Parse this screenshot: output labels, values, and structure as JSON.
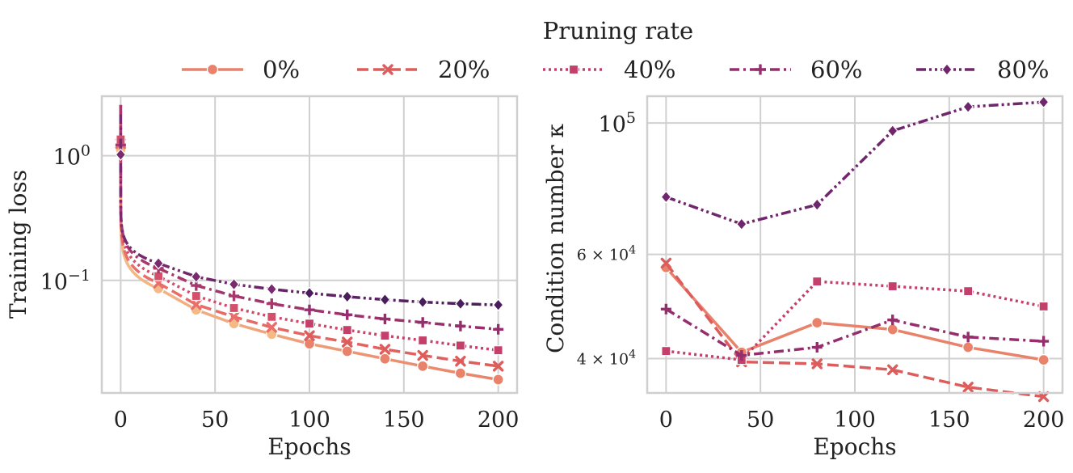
{
  "legend": {
    "title": "Pruning rate",
    "entries": [
      {
        "label": "0%",
        "color": "#e8826a",
        "dash": "solid",
        "marker": "circle"
      },
      {
        "label": "20%",
        "color": "#dd5c5c",
        "dash": "dashed",
        "marker": "x"
      },
      {
        "label": "40%",
        "color": "#c43f69",
        "dash": "dotted",
        "marker": "square"
      },
      {
        "label": "60%",
        "color": "#962e6e",
        "dash": "dashdot",
        "marker": "plus"
      },
      {
        "label": "80%",
        "color": "#70266d",
        "dash": "dashdotdot",
        "marker": "diamond"
      }
    ]
  },
  "chart_data": [
    {
      "type": "line",
      "title": "",
      "xlabel": "Epochs",
      "ylabel": "Training loss",
      "yscale": "log",
      "xlim": [
        -10,
        210
      ],
      "ylim": [
        0.0125,
        3.0
      ],
      "xticks": [
        0,
        50,
        100,
        150,
        200
      ],
      "xtick_labels": [
        "0",
        "50",
        "100",
        "150",
        "200"
      ],
      "yticks": [
        1.0,
        0.1
      ],
      "ytick_labels": [
        "10^0",
        "10^-1"
      ],
      "grid": true,
      "series": [
        {
          "name": "0%",
          "color_start": "#f3b986",
          "color_end": "#e8826a",
          "x": [
            0,
            20,
            40,
            60,
            80,
            100,
            120,
            140,
            160,
            180,
            200
          ],
          "y": [
            1.12,
            0.086,
            0.058,
            0.045,
            0.037,
            0.031,
            0.027,
            0.0235,
            0.0205,
            0.018,
            0.016
          ]
        },
        {
          "name": "20%",
          "color_start": "#e9706a",
          "color_end": "#dd5c5c",
          "x": [
            0,
            20,
            40,
            60,
            80,
            100,
            120,
            140,
            160,
            180,
            200
          ],
          "y": [
            1.25,
            0.095,
            0.064,
            0.051,
            0.042,
            0.036,
            0.032,
            0.028,
            0.025,
            0.0225,
            0.0205
          ]
        },
        {
          "name": "40%",
          "color_start": "#d4506a",
          "color_end": "#c43f69",
          "x": [
            0,
            20,
            40,
            60,
            80,
            100,
            120,
            140,
            160,
            180,
            200
          ],
          "y": [
            1.35,
            0.108,
            0.075,
            0.06,
            0.051,
            0.045,
            0.04,
            0.036,
            0.033,
            0.03,
            0.0275
          ]
        },
        {
          "name": "60%",
          "color_start": "#a8386c",
          "color_end": "#962e6e",
          "x": [
            0,
            20,
            40,
            60,
            80,
            100,
            120,
            140,
            160,
            180,
            200
          ],
          "y": [
            1.22,
            0.125,
            0.091,
            0.075,
            0.065,
            0.058,
            0.053,
            0.049,
            0.046,
            0.043,
            0.0405
          ]
        },
        {
          "name": "80%",
          "color_start": "#7a2a6f",
          "color_end": "#4a1d5c",
          "x": [
            0,
            20,
            40,
            60,
            80,
            100,
            120,
            140,
            160,
            180,
            200
          ],
          "y": [
            1.02,
            0.137,
            0.107,
            0.093,
            0.085,
            0.079,
            0.074,
            0.07,
            0.067,
            0.065,
            0.0635
          ]
        }
      ]
    },
    {
      "type": "line",
      "title": "",
      "xlabel": "Epochs",
      "ylabel": "Condition number κ",
      "yscale": "log",
      "xlim": [
        -10,
        210
      ],
      "ylim": [
        35000,
        111000
      ],
      "xticks": [
        0,
        50,
        100,
        150,
        200
      ],
      "xtick_labels": [
        "0",
        "50",
        "100",
        "150",
        "200"
      ],
      "yticks": [
        100000,
        60000,
        40000
      ],
      "ytick_labels": [
        "10^5",
        "6 × 10^4",
        "4 × 10^4"
      ],
      "grid": true,
      "series": [
        {
          "name": "0%",
          "x": [
            0,
            40,
            80,
            120,
            160,
            200
          ],
          "y": [
            57000,
            41000,
            46000,
            44800,
            41800,
            39800
          ]
        },
        {
          "name": "20%",
          "x": [
            0,
            40,
            80,
            120,
            160,
            200
          ],
          "y": [
            58000,
            39500,
            39200,
            38300,
            35800,
            34500
          ]
        },
        {
          "name": "40%",
          "x": [
            0,
            40,
            80,
            120,
            160,
            200
          ],
          "y": [
            41200,
            39800,
            54000,
            53000,
            52000,
            49000
          ]
        },
        {
          "name": "60%",
          "x": [
            0,
            40,
            80,
            120,
            160,
            200
          ],
          "y": [
            48500,
            40500,
            41800,
            46500,
            43500,
            42800
          ]
        },
        {
          "name": "80%",
          "x": [
            0,
            40,
            80,
            120,
            160,
            200
          ],
          "y": [
            75000,
            67500,
            72800,
            97000,
            106500,
            108500
          ]
        }
      ]
    }
  ]
}
